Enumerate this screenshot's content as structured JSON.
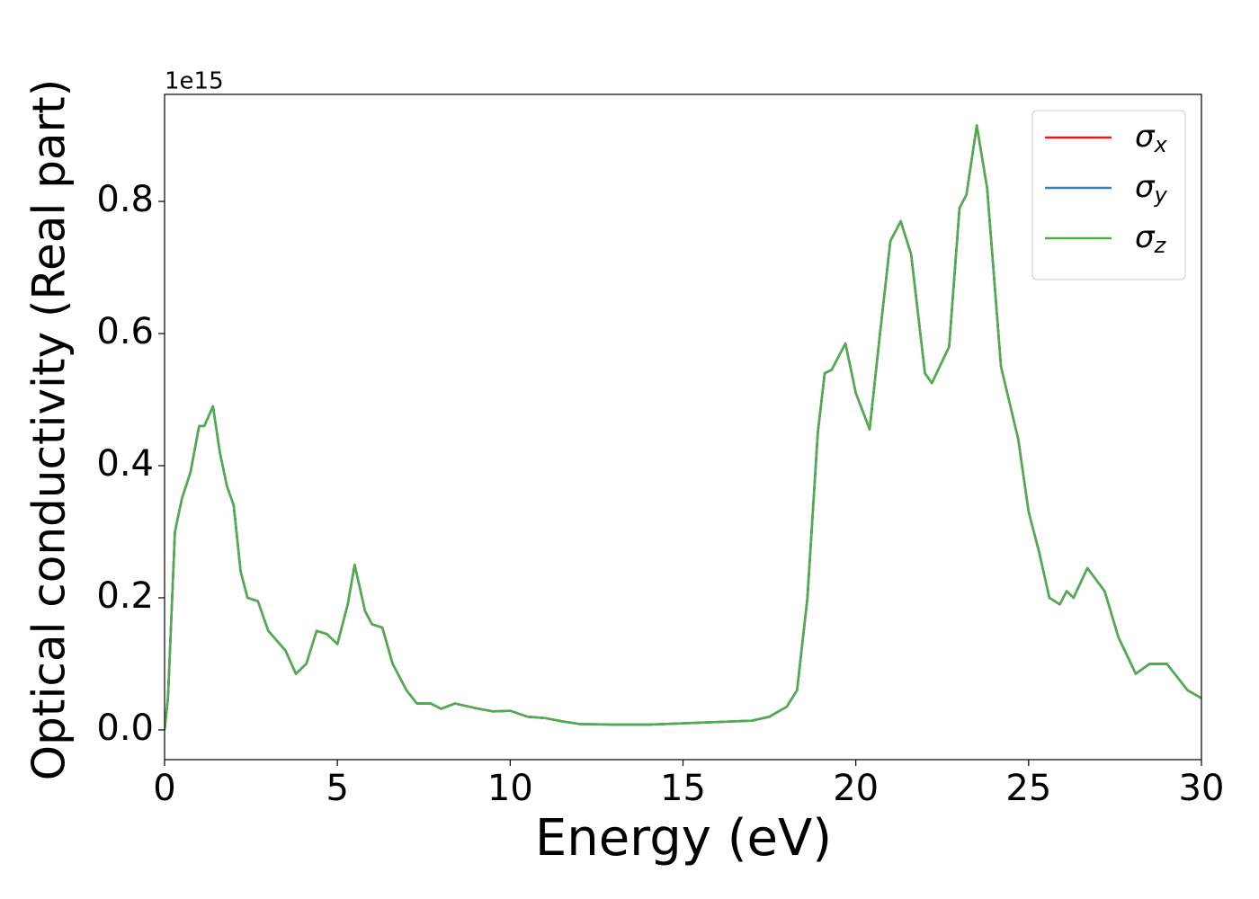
{
  "chart_data": {
    "type": "line",
    "x_label": "Energy (eV)",
    "y_label": "Optical conductivity (Real part)",
    "y_offset_label": "1e15",
    "x": [
      0,
      0.1,
      0.3,
      0.5,
      0.75,
      1.0,
      1.15,
      1.4,
      1.6,
      1.8,
      2.0,
      2.2,
      2.4,
      2.7,
      3.0,
      3.5,
      3.8,
      4.1,
      4.4,
      4.7,
      5.0,
      5.3,
      5.5,
      5.8,
      6.0,
      6.3,
      6.6,
      7.0,
      7.3,
      7.7,
      8.0,
      8.4,
      9.0,
      9.5,
      10.0,
      10.5,
      11.0,
      11.5,
      12.0,
      13.0,
      14.0,
      15.0,
      16.0,
      17.0,
      17.5,
      18.0,
      18.3,
      18.6,
      18.9,
      19.1,
      19.3,
      19.7,
      20.0,
      20.4,
      20.7,
      21.0,
      21.3,
      21.6,
      22.0,
      22.2,
      22.7,
      23.0,
      23.2,
      23.5,
      23.8,
      24.2,
      24.7,
      25.0,
      25.3,
      25.6,
      25.9,
      26.1,
      26.3,
      26.7,
      27.2,
      27.6,
      28.1,
      28.5,
      29.0,
      29.6,
      30.0
    ],
    "series": [
      {
        "name": "σx",
        "color": "#e41a1c",
        "values": [
          0.0,
          0.05,
          0.3,
          0.35,
          0.39,
          0.46,
          0.46,
          0.49,
          0.42,
          0.37,
          0.34,
          0.24,
          0.2,
          0.195,
          0.15,
          0.12,
          0.085,
          0.1,
          0.15,
          0.145,
          0.13,
          0.19,
          0.25,
          0.18,
          0.16,
          0.155,
          0.1,
          0.06,
          0.04,
          0.04,
          0.032,
          0.04,
          0.033,
          0.028,
          0.029,
          0.02,
          0.018,
          0.013,
          0.009,
          0.008,
          0.008,
          0.01,
          0.012,
          0.014,
          0.02,
          0.035,
          0.06,
          0.2,
          0.45,
          0.54,
          0.545,
          0.585,
          0.51,
          0.455,
          0.6,
          0.74,
          0.77,
          0.72,
          0.54,
          0.525,
          0.58,
          0.79,
          0.81,
          0.915,
          0.82,
          0.55,
          0.44,
          0.33,
          0.27,
          0.2,
          0.19,
          0.21,
          0.2,
          0.245,
          0.21,
          0.14,
          0.085,
          0.1,
          0.1,
          0.06,
          0.048
        ]
      },
      {
        "name": "σy",
        "color": "#377eb8",
        "values": [
          0.0,
          0.05,
          0.3,
          0.35,
          0.39,
          0.46,
          0.46,
          0.49,
          0.42,
          0.37,
          0.34,
          0.24,
          0.2,
          0.195,
          0.15,
          0.12,
          0.085,
          0.1,
          0.15,
          0.145,
          0.13,
          0.19,
          0.25,
          0.18,
          0.16,
          0.155,
          0.1,
          0.06,
          0.04,
          0.04,
          0.032,
          0.04,
          0.033,
          0.028,
          0.029,
          0.02,
          0.018,
          0.013,
          0.009,
          0.008,
          0.008,
          0.01,
          0.012,
          0.014,
          0.02,
          0.035,
          0.06,
          0.2,
          0.45,
          0.54,
          0.545,
          0.585,
          0.51,
          0.455,
          0.6,
          0.74,
          0.77,
          0.72,
          0.54,
          0.525,
          0.58,
          0.79,
          0.81,
          0.915,
          0.82,
          0.55,
          0.44,
          0.33,
          0.27,
          0.2,
          0.19,
          0.21,
          0.2,
          0.245,
          0.21,
          0.14,
          0.085,
          0.1,
          0.1,
          0.06,
          0.048
        ]
      },
      {
        "name": "σz",
        "color": "#4daf4a",
        "values": [
          0.0,
          0.05,
          0.3,
          0.35,
          0.39,
          0.46,
          0.46,
          0.49,
          0.42,
          0.37,
          0.34,
          0.24,
          0.2,
          0.195,
          0.15,
          0.12,
          0.085,
          0.1,
          0.15,
          0.145,
          0.13,
          0.19,
          0.25,
          0.18,
          0.16,
          0.155,
          0.1,
          0.06,
          0.04,
          0.04,
          0.032,
          0.04,
          0.033,
          0.028,
          0.029,
          0.02,
          0.018,
          0.013,
          0.009,
          0.008,
          0.008,
          0.01,
          0.012,
          0.014,
          0.02,
          0.035,
          0.06,
          0.2,
          0.45,
          0.54,
          0.545,
          0.585,
          0.51,
          0.455,
          0.6,
          0.74,
          0.77,
          0.72,
          0.54,
          0.525,
          0.58,
          0.79,
          0.81,
          0.915,
          0.82,
          0.55,
          0.44,
          0.33,
          0.27,
          0.2,
          0.19,
          0.21,
          0.2,
          0.245,
          0.21,
          0.14,
          0.085,
          0.1,
          0.1,
          0.06,
          0.048
        ]
      }
    ],
    "xlim": [
      0,
      30
    ],
    "xticks": [
      0,
      5,
      10,
      15,
      20,
      25,
      30
    ],
    "ylim": [
      -0.045,
      0.962
    ],
    "yticks": [
      {
        "value": 0,
        "label": "0.0"
      },
      0.2,
      0.4,
      0.6,
      0.8
    ],
    "grid": false,
    "legend": "upper right"
  }
}
